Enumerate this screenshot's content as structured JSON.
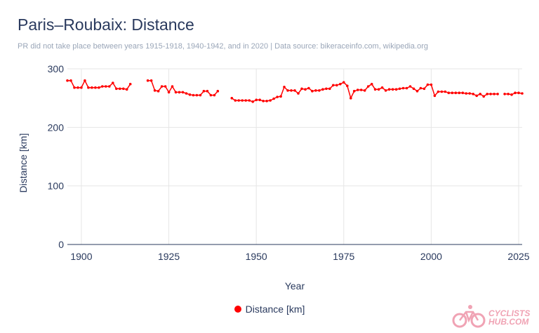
{
  "header": {
    "title": "Paris–Roubaix: Distance",
    "subtitle": "PR did not take place between years 1915-1918, 1940-1942, and in 2020 | Data source: bikeraceinfo.com, wikipedia.org"
  },
  "logo": {
    "line1": "CYCLISTS",
    "line2": "HUB.COM"
  },
  "colors": {
    "series": "#ff0000",
    "text": "#2a3a5e",
    "grid": "#e6e6e6"
  },
  "chart_data": {
    "type": "line",
    "title": "Paris–Roubaix: Distance",
    "xlabel": "Year",
    "ylabel": "Distance [km]",
    "xlim": [
      1896,
      2026
    ],
    "ylim": [
      0,
      300
    ],
    "xticks": [
      1900,
      1925,
      1950,
      1975,
      2000,
      2025
    ],
    "yticks": [
      0,
      100,
      200,
      300
    ],
    "grid": true,
    "legend": "bottom",
    "series": [
      {
        "name": "Distance [km]",
        "color": "#ff0000",
        "points": [
          [
            1896,
            280
          ],
          [
            1897,
            280
          ],
          [
            1898,
            268
          ],
          [
            1899,
            268
          ],
          [
            1900,
            268
          ],
          [
            1901,
            280
          ],
          [
            1902,
            268
          ],
          [
            1903,
            268
          ],
          [
            1904,
            268
          ],
          [
            1905,
            268
          ],
          [
            1906,
            270
          ],
          [
            1907,
            270
          ],
          [
            1908,
            270
          ],
          [
            1909,
            276
          ],
          [
            1910,
            266
          ],
          [
            1911,
            266
          ],
          [
            1912,
            266
          ],
          [
            1913,
            265
          ],
          [
            1914,
            274
          ],
          [
            1919,
            280
          ],
          [
            1920,
            280
          ],
          [
            1921,
            263
          ],
          [
            1922,
            262
          ],
          [
            1923,
            270
          ],
          [
            1924,
            270
          ],
          [
            1925,
            260
          ],
          [
            1926,
            270
          ],
          [
            1927,
            260
          ],
          [
            1928,
            260
          ],
          [
            1929,
            260
          ],
          [
            1930,
            258
          ],
          [
            1931,
            256
          ],
          [
            1932,
            255
          ],
          [
            1933,
            255
          ],
          [
            1934,
            255
          ],
          [
            1935,
            262
          ],
          [
            1936,
            262
          ],
          [
            1937,
            255
          ],
          [
            1938,
            255
          ],
          [
            1939,
            262
          ],
          [
            1943,
            250
          ],
          [
            1944,
            246
          ],
          [
            1945,
            246
          ],
          [
            1946,
            246
          ],
          [
            1947,
            246
          ],
          [
            1948,
            246
          ],
          [
            1949,
            244
          ],
          [
            1950,
            247
          ],
          [
            1951,
            247
          ],
          [
            1952,
            245
          ],
          [
            1953,
            245
          ],
          [
            1954,
            246
          ],
          [
            1955,
            249
          ],
          [
            1956,
            252
          ],
          [
            1957,
            253
          ],
          [
            1958,
            269
          ],
          [
            1959,
            263
          ],
          [
            1960,
            263
          ],
          [
            1961,
            263
          ],
          [
            1962,
            258
          ],
          [
            1963,
            266
          ],
          [
            1964,
            265
          ],
          [
            1965,
            267
          ],
          [
            1966,
            262
          ],
          [
            1967,
            263
          ],
          [
            1968,
            263
          ],
          [
            1969,
            265
          ],
          [
            1970,
            266
          ],
          [
            1971,
            266
          ],
          [
            1972,
            272
          ],
          [
            1973,
            272
          ],
          [
            1974,
            274
          ],
          [
            1975,
            277
          ],
          [
            1976,
            271
          ],
          [
            1977,
            250
          ],
          [
            1978,
            262
          ],
          [
            1979,
            264
          ],
          [
            1980,
            264
          ],
          [
            1981,
            263
          ],
          [
            1982,
            270
          ],
          [
            1983,
            274
          ],
          [
            1984,
            265
          ],
          [
            1985,
            265
          ],
          [
            1986,
            268
          ],
          [
            1987,
            263
          ],
          [
            1988,
            265
          ],
          [
            1989,
            265
          ],
          [
            1990,
            265
          ],
          [
            1991,
            266
          ],
          [
            1992,
            267
          ],
          [
            1993,
            267
          ],
          [
            1994,
            270
          ],
          [
            1995,
            266
          ],
          [
            1996,
            262
          ],
          [
            1997,
            267
          ],
          [
            1998,
            266
          ],
          [
            1999,
            273
          ],
          [
            2000,
            273
          ],
          [
            2001,
            254
          ],
          [
            2002,
            261
          ],
          [
            2003,
            261
          ],
          [
            2004,
            261
          ],
          [
            2005,
            259
          ],
          [
            2006,
            259
          ],
          [
            2007,
            259
          ],
          [
            2008,
            259
          ],
          [
            2009,
            259
          ],
          [
            2010,
            258
          ],
          [
            2011,
            258
          ],
          [
            2012,
            257
          ],
          [
            2013,
            254
          ],
          [
            2014,
            257
          ],
          [
            2015,
            253
          ],
          [
            2016,
            257
          ],
          [
            2017,
            257
          ],
          [
            2018,
            257
          ],
          [
            2019,
            257
          ],
          [
            2021,
            257
          ],
          [
            2022,
            257
          ],
          [
            2023,
            256
          ],
          [
            2024,
            259
          ],
          [
            2025,
            259
          ],
          [
            2026,
            258
          ]
        ]
      }
    ]
  }
}
